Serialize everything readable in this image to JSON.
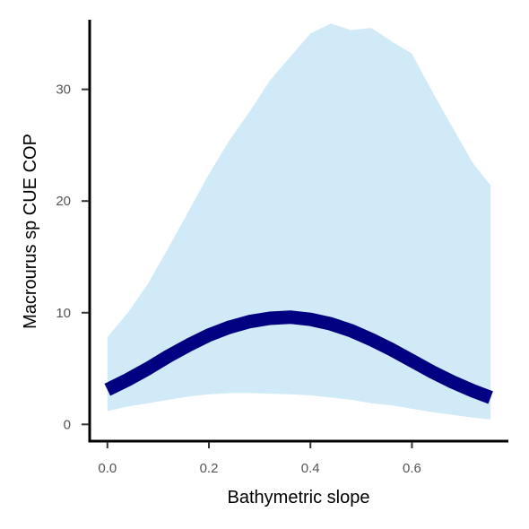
{
  "chart_data": {
    "type": "line",
    "title": "",
    "xlabel": "Bathymetric slope",
    "ylabel": "Macrourus sp  CUE COP",
    "xlim": [
      -0.035,
      0.79
    ],
    "ylim": [
      -1.5,
      38
    ],
    "xticks": [
      0.0,
      0.2,
      0.4,
      0.6
    ],
    "xtick_labels": [
      "0.0",
      "0.2",
      "0.4",
      "0.6"
    ],
    "yticks": [
      0,
      10,
      20,
      30
    ],
    "ytick_labels": [
      "0",
      "10",
      "20",
      "30"
    ],
    "grid": false,
    "legend": "none",
    "series": [
      {
        "kind": "line",
        "color": "#000080",
        "x": [
          0.0,
          0.04,
          0.08,
          0.12,
          0.16,
          0.2,
          0.24,
          0.28,
          0.32,
          0.36,
          0.4,
          0.44,
          0.48,
          0.52,
          0.56,
          0.6,
          0.64,
          0.68,
          0.72,
          0.755
        ],
        "y": [
          3.1,
          4.0,
          5.0,
          6.1,
          7.1,
          8.0,
          8.7,
          9.2,
          9.5,
          9.6,
          9.4,
          9.0,
          8.4,
          7.6,
          6.7,
          5.7,
          4.7,
          3.8,
          3.0,
          2.4
        ]
      },
      {
        "kind": "band",
        "color": "#d0eaf7",
        "x": [
          0.0,
          0.04,
          0.08,
          0.12,
          0.16,
          0.2,
          0.24,
          0.28,
          0.32,
          0.36,
          0.4,
          0.44,
          0.48,
          0.52,
          0.56,
          0.6,
          0.64,
          0.68,
          0.72,
          0.755
        ],
        "upper": [
          7.8,
          10.0,
          12.6,
          15.8,
          19.1,
          22.4,
          25.4,
          28.0,
          30.8,
          32.9,
          35.0,
          35.9,
          35.3,
          35.5,
          34.3,
          33.2,
          29.8,
          26.6,
          23.4,
          21.4
        ],
        "lower": [
          1.2,
          1.6,
          1.9,
          2.2,
          2.5,
          2.7,
          2.8,
          2.8,
          2.75,
          2.7,
          2.6,
          2.4,
          2.2,
          1.9,
          1.7,
          1.4,
          1.1,
          0.85,
          0.6,
          0.45
        ]
      }
    ]
  }
}
